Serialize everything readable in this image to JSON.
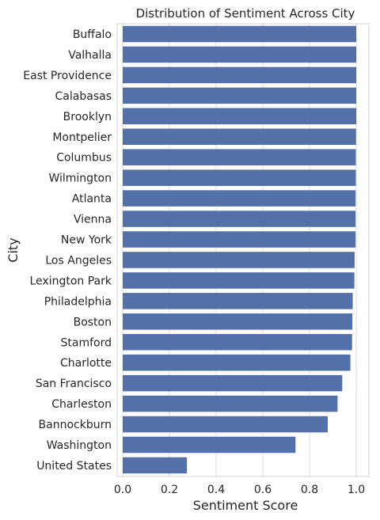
{
  "chart_data": {
    "type": "bar",
    "orientation": "horizontal",
    "title": "Distribution of Sentiment Across City",
    "xlabel": "Sentiment Score",
    "ylabel": "City",
    "xlim": [
      0,
      1.05
    ],
    "xticks": [
      0.0,
      0.2,
      0.4,
      0.6,
      0.8,
      1.0
    ],
    "xtick_labels": [
      "0.0",
      "0.2",
      "0.4",
      "0.6",
      "0.8",
      "1.0"
    ],
    "grid": "vertical",
    "bar_color": "#5470A8",
    "categories": [
      "Buffalo",
      "Valhalla",
      "East Providence",
      "Calabasas",
      "Brooklyn",
      "Montpelier",
      "Columbus",
      "Wilmington",
      "Atlanta",
      "Vienna",
      "New York",
      "Los Angeles",
      "Lexington Park",
      "Philadelphia",
      "Boston",
      "Stamford",
      "Charlotte",
      "San Francisco",
      "Charleston",
      "Bannockburn",
      "Washington",
      "United States"
    ],
    "values": [
      1.0,
      1.0,
      1.0,
      1.0,
      1.0,
      0.999,
      0.998,
      0.998,
      0.997,
      0.997,
      0.997,
      0.993,
      0.992,
      0.985,
      0.983,
      0.982,
      0.975,
      0.94,
      0.92,
      0.878,
      0.74,
      0.275
    ]
  }
}
